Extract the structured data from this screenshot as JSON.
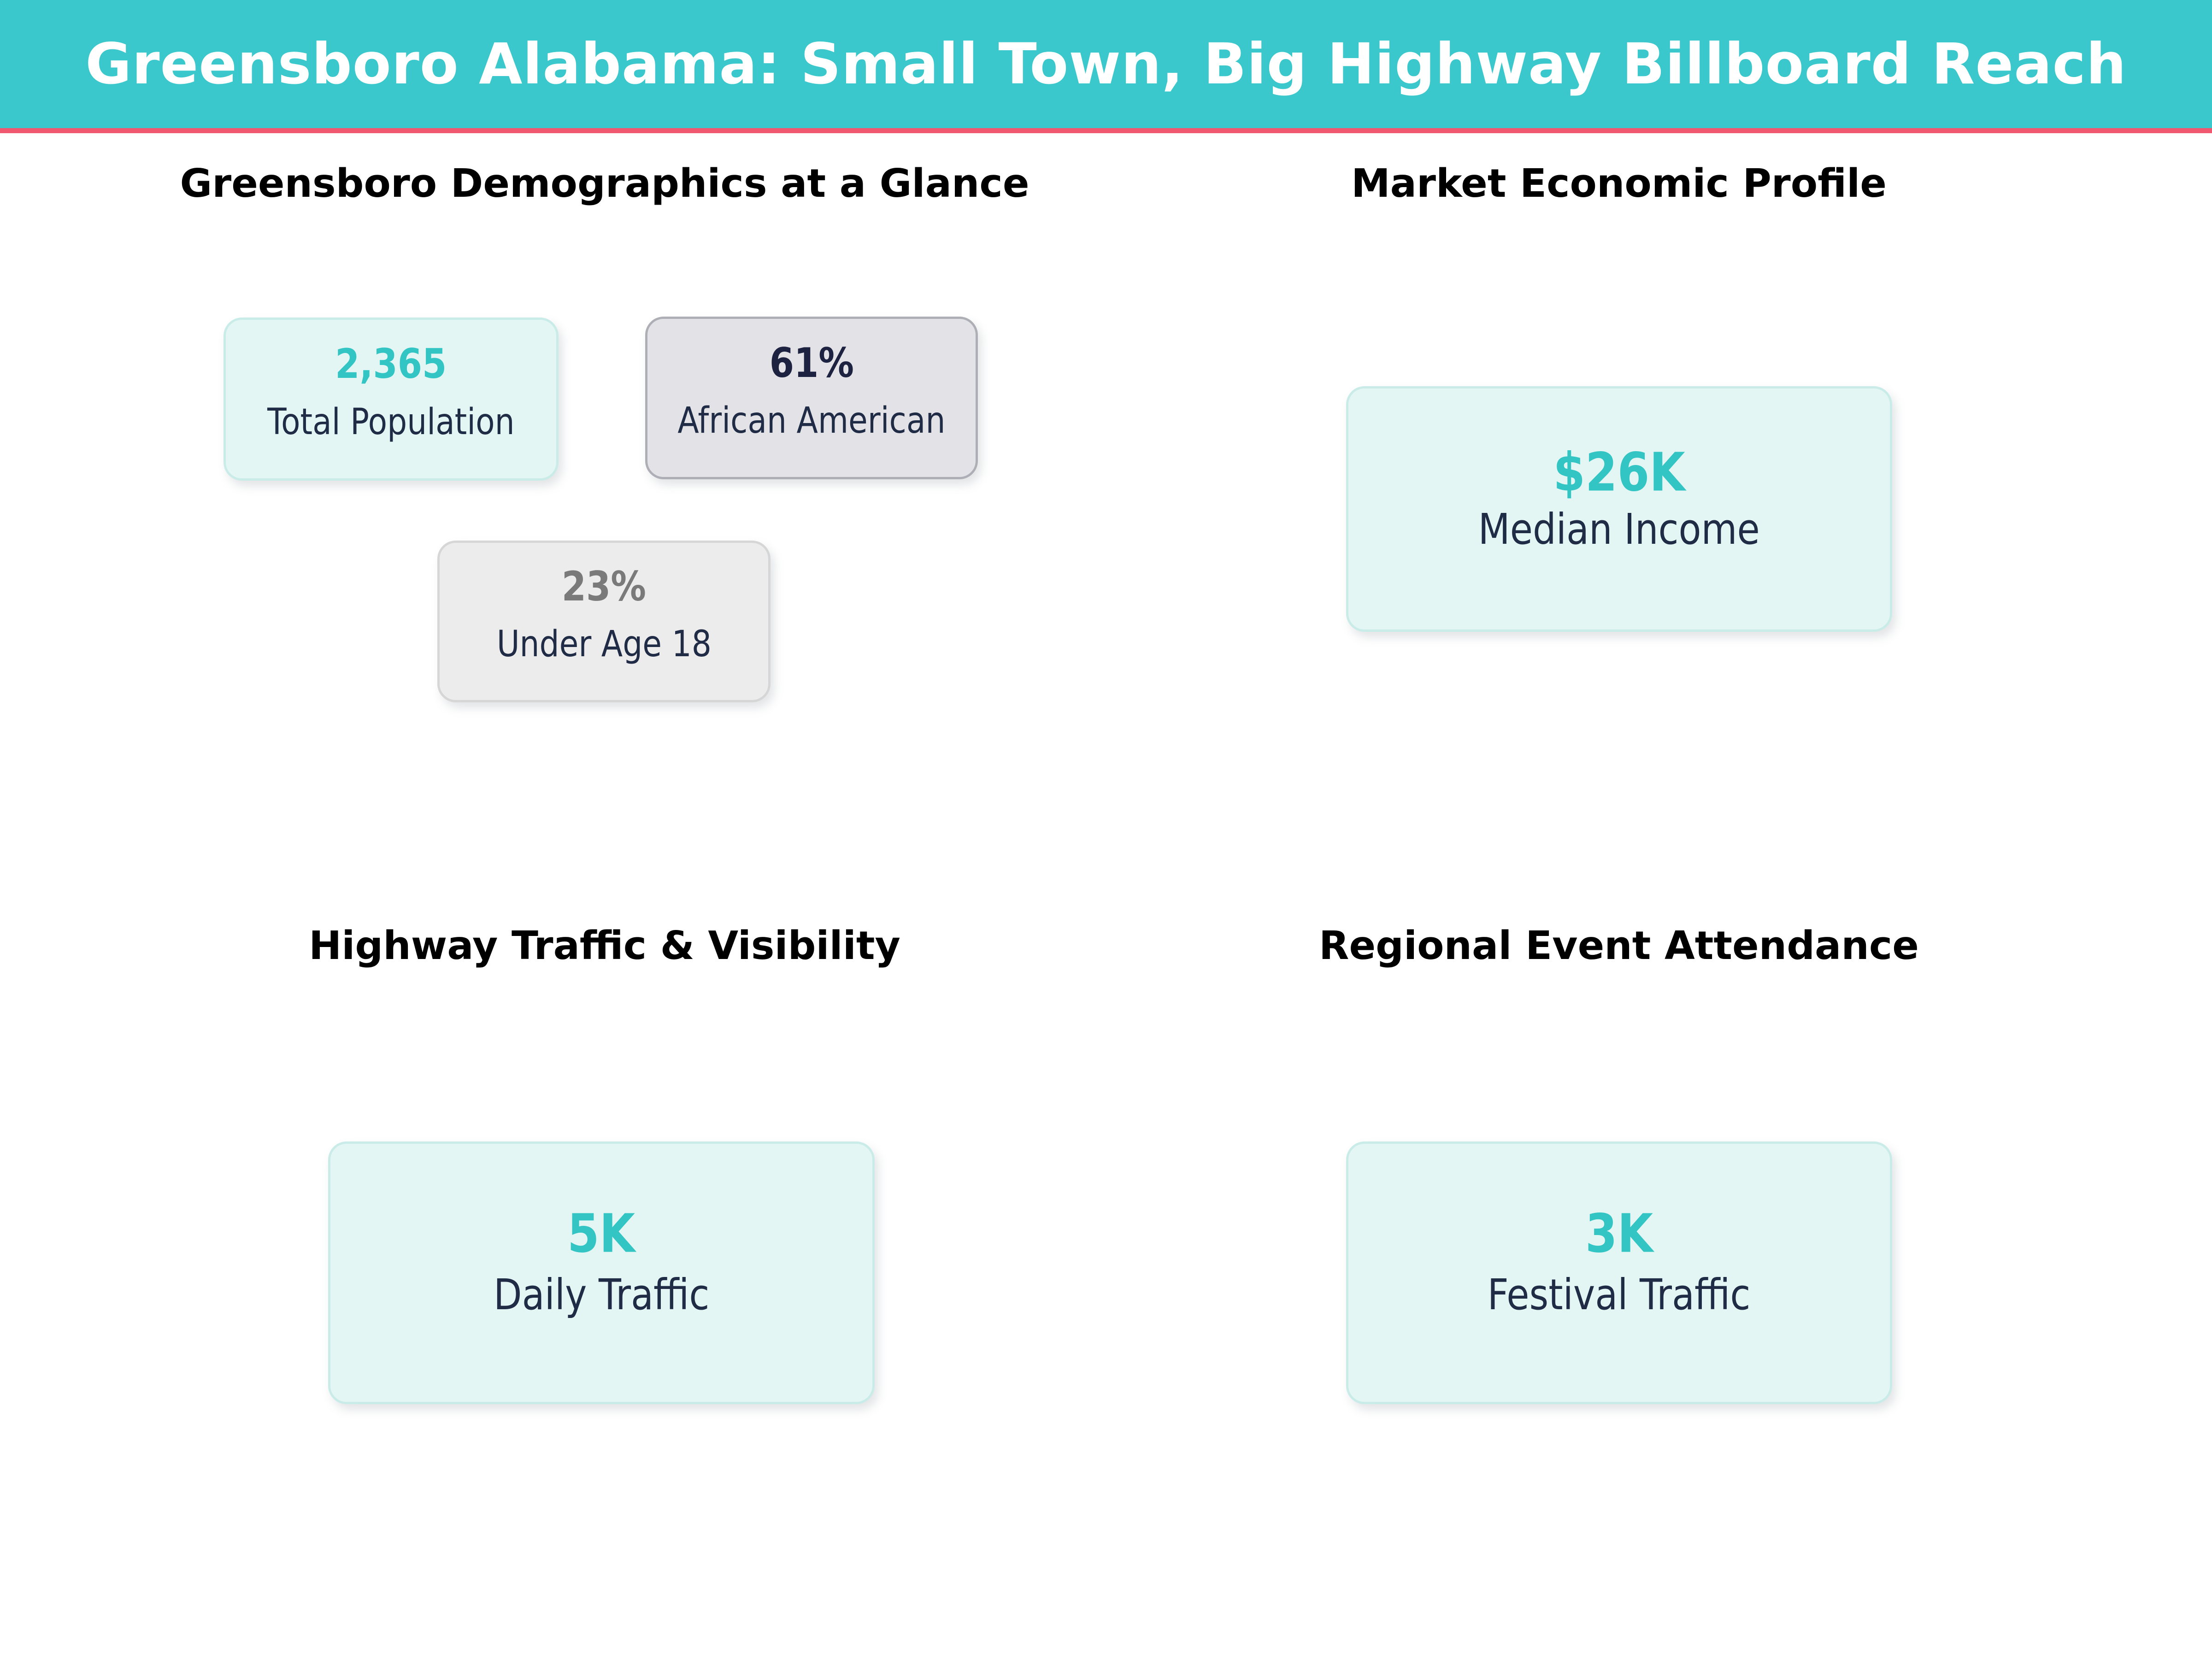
{
  "header": {
    "title": "Greensboro Alabama: Small Town, Big Highway Billboard Reach"
  },
  "sections": {
    "demographics": {
      "title": "Greensboro Demographics at a Glance"
    },
    "economic": {
      "title": "Market Economic Profile"
    },
    "traffic": {
      "title": "Highway Traffic & Visibility"
    },
    "events": {
      "title": "Regional Event Attendance"
    }
  },
  "cards": {
    "total_population": {
      "value": "2,365",
      "label": "Total Population"
    },
    "african_american": {
      "value": "61%",
      "label": "African American"
    },
    "under_age_18": {
      "value": "23%",
      "label": "Under Age 18"
    },
    "median_income": {
      "value": "$26K",
      "label": "Median Income"
    },
    "daily_traffic": {
      "value": "5K",
      "label": "Daily Traffic"
    },
    "festival_traffic": {
      "value": "3K",
      "label": "Festival Traffic"
    }
  },
  "colors": {
    "header_bg": "#3AC8CC",
    "header_accent": "#F0586F",
    "teal_value": "#33C5C4",
    "teal_card_bg": "#E4F6F4",
    "teal_card_border": "#C9ECE9",
    "grey_card_bg": "#E2E2E7",
    "grey_card_border": "#AEAEB6",
    "light_grey_card_bg": "#ECECEC",
    "light_grey_card_border": "#D6D6D6",
    "label_navy": "#202B46",
    "value_navy": "#1D2240",
    "value_grey": "#7A7A7A"
  },
  "chart_data": [
    {
      "type": "table",
      "title": "Greensboro Demographics at a Glance",
      "values": [
        {
          "label": "Total Population",
          "display": "2,365",
          "value": 2365
        },
        {
          "label": "African American",
          "display": "61%",
          "value": 61
        },
        {
          "label": "Under Age 18",
          "display": "23%",
          "value": 23
        }
      ]
    },
    {
      "type": "table",
      "title": "Market Economic Profile",
      "values": [
        {
          "label": "Median Income",
          "display": "$26K",
          "value": 26000
        }
      ]
    },
    {
      "type": "table",
      "title": "Highway Traffic & Visibility",
      "values": [
        {
          "label": "Daily Traffic",
          "display": "5K",
          "value": 5000
        }
      ]
    },
    {
      "type": "table",
      "title": "Regional Event Attendance",
      "values": [
        {
          "label": "Festival Traffic",
          "display": "3K",
          "value": 3000
        }
      ]
    }
  ]
}
